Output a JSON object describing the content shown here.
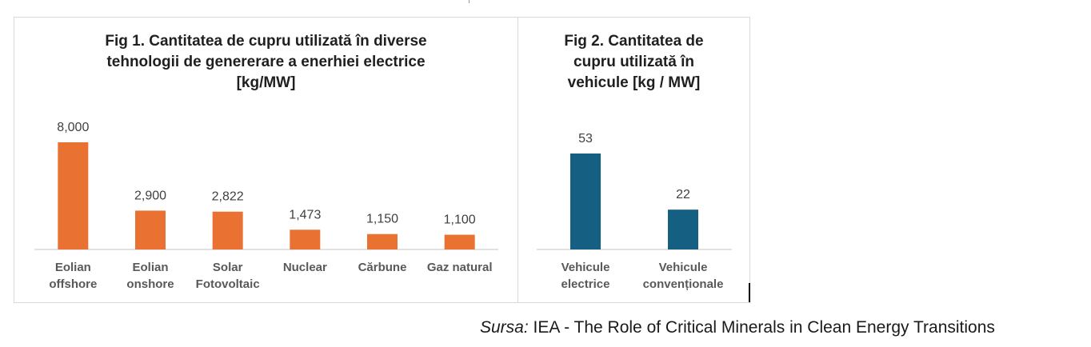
{
  "chart_data": [
    {
      "type": "bar",
      "title": "Fig 1. Cantitatea de cupru utilizată în diverse\ntehnologii de genererare a enerhiei electrice\n[kg/MW]",
      "categories": [
        "Eolian\noffshore",
        "Eolian\nonshore",
        "Solar\nFotovoltaic",
        "Nuclear",
        "Cărbune",
        "Gaz natural"
      ],
      "values": [
        8000,
        2900,
        2822,
        1473,
        1150,
        1100
      ],
      "value_labels": [
        "8,000",
        "2,900",
        "2,822",
        "1,473",
        "1,150",
        "1,100"
      ],
      "color": "#E97132",
      "ylim": [
        0,
        8000
      ],
      "grid": false
    },
    {
      "type": "bar",
      "title": "Fig 2. Cantitatea de\ncupru utilizată în\nvehicule [kg / MW]",
      "categories": [
        "Vehicule\nelectrice",
        "Vehicule\nconvenționale"
      ],
      "values": [
        53,
        22
      ],
      "value_labels": [
        "53",
        "22"
      ],
      "color": "#156082",
      "ylim": [
        0,
        53
      ],
      "grid": false
    }
  ],
  "source": {
    "label": "Sursa:",
    "text": "IEA - The Role of Critical Minerals in Clean Energy Transitions"
  }
}
